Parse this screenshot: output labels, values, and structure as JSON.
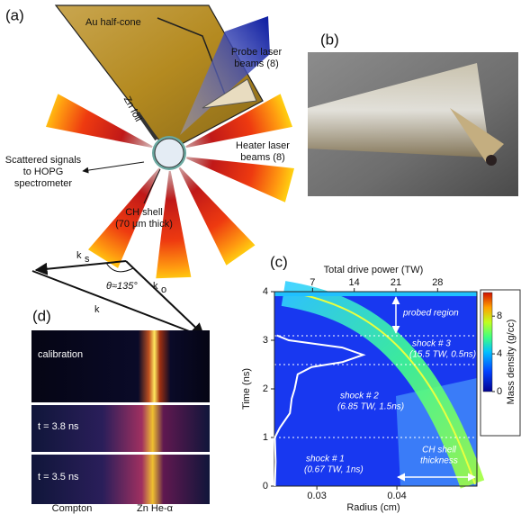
{
  "panel_labels": {
    "a": "(a)",
    "b": "(b)",
    "c": "(c)",
    "d": "(d)"
  },
  "panel_a": {
    "cone": "Au half-cone",
    "probe": [
      "Probe laser",
      "beams (8)"
    ],
    "foil": "Zn foil",
    "heater": [
      "Heater laser",
      "beams (8)"
    ],
    "scattered": [
      "Scattered signals",
      "to HOPG",
      "spectrometer"
    ],
    "shell": [
      "CH shell",
      "(70 μm thick)"
    ],
    "k": "k",
    "ks_sub": "s",
    "ko_sub": "o",
    "angle": "θ≈135°"
  },
  "panel_d": {
    "strips": [
      "calibration",
      "t = 3.8 ns",
      "t = 3.5 ns"
    ],
    "bottom": [
      "Compton",
      "Zn He-α"
    ]
  },
  "chart_data": {
    "type": "image-plot",
    "x_title": "Radius (cm)",
    "x2_title": "Total drive power (TW)",
    "y_title": "Time (ns)",
    "xlim": [
      0.0247,
      0.05
    ],
    "xticks": [
      0.03,
      0.04
    ],
    "x2lim": [
      0.6,
      34.6
    ],
    "x2ticks": [
      7,
      14,
      21,
      28
    ],
    "ylim": [
      0,
      4
    ],
    "yticks": [
      0,
      1,
      2,
      3,
      4
    ],
    "colorbar_title": "Mass density (g/cc)",
    "clim": [
      0,
      10.5
    ],
    "cticks": [
      0,
      4,
      8
    ],
    "series": [
      {
        "color": "#ffffff",
        "axis": "x2",
        "time": [
          0,
          0.5,
          1,
          1.2,
          1.5,
          1.8,
          2.0,
          2.3,
          2.45,
          2.55,
          2.7,
          2.85,
          3.0,
          3.1
        ],
        "values": [
          0.67,
          0.8,
          0.67,
          1.5,
          3.2,
          3.5,
          4.0,
          4.5,
          6.85,
          12,
          15.5,
          12,
          3,
          1
        ]
      }
    ],
    "annotations": {
      "probed": "probed region",
      "shock3": [
        "shock # 3",
        "(15.5 TW, 0.5ns)"
      ],
      "shock2": [
        "shock # 2",
        "(6.85 TW, 1.5ns)"
      ],
      "shock1": [
        "shock # 1",
        "(0.67 TW, 1ns)"
      ],
      "shell": [
        "CH shell",
        "thickness"
      ]
    }
  }
}
